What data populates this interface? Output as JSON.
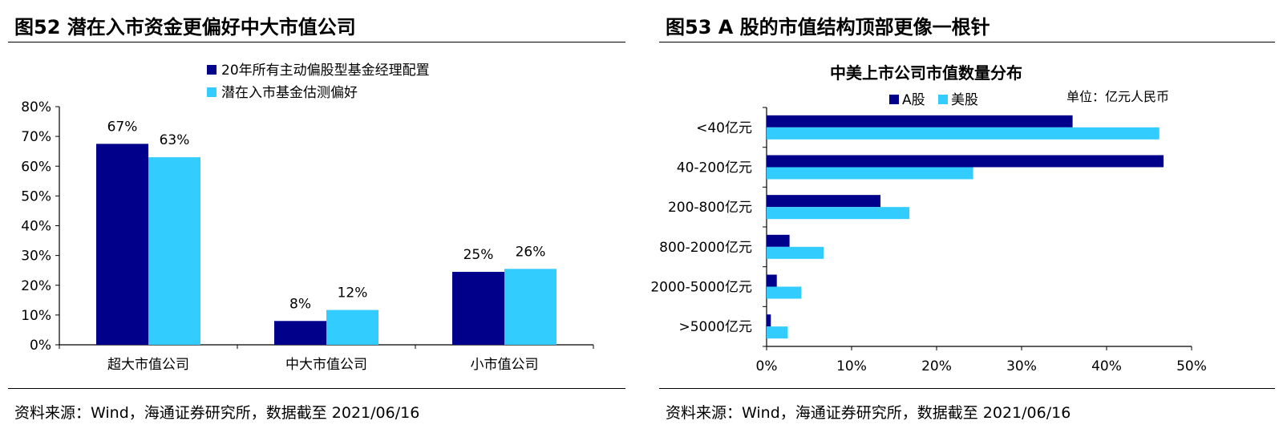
{
  "left": {
    "figure_title": "图52 潜在入市资金更偏好中大市值公司",
    "source": "资料来源：Wind，海通证券研究所，数据截至 2021/06/16"
  },
  "right": {
    "figure_title": "图53 A 股的市值结构顶部更像一根针",
    "source": "资料来源：Wind，海通证券研究所，数据截至 2021/06/16"
  },
  "chart_data": [
    {
      "type": "bar",
      "title": "",
      "categories": [
        "超大市值公司",
        "中大市值公司",
        "小市值公司"
      ],
      "series": [
        {
          "name": "20年所有主动偏股型基金经理配置",
          "values": [
            67.5,
            8,
            24.5
          ],
          "labels": [
            "67%",
            "8%",
            "25%"
          ],
          "color": "#00008B"
        },
        {
          "name": "潜在入市基金估测偏好",
          "values": [
            63,
            11.7,
            25.5
          ],
          "labels": [
            "63%",
            "12%",
            "26%"
          ],
          "color": "#33CCFF"
        }
      ],
      "ylim": [
        0,
        80
      ],
      "yticks": [
        "0%",
        "10%",
        "20%",
        "30%",
        "40%",
        "50%",
        "60%",
        "70%",
        "80%"
      ],
      "legend": "top-center",
      "grid": false
    },
    {
      "type": "bar",
      "orientation": "horizontal",
      "title": "中美上市公司市值数量分布",
      "unit_note": "单位：亿元人民币",
      "categories": [
        "<40亿元",
        "40-200亿元",
        "200-800亿元",
        "800-2000亿元",
        "2000-5000亿元",
        ">5000亿元"
      ],
      "series": [
        {
          "name": "A股",
          "values": [
            36,
            46.7,
            13.4,
            2.7,
            1.2,
            0.5
          ],
          "color": "#00008B"
        },
        {
          "name": "美股",
          "values": [
            46.2,
            24.3,
            16.8,
            6.7,
            4.1,
            2.5
          ],
          "color": "#33CCFF"
        }
      ],
      "xlim": [
        0,
        50
      ],
      "xticks": [
        "0%",
        "10%",
        "20%",
        "30%",
        "40%",
        "50%"
      ],
      "legend": "top",
      "grid": false
    }
  ]
}
